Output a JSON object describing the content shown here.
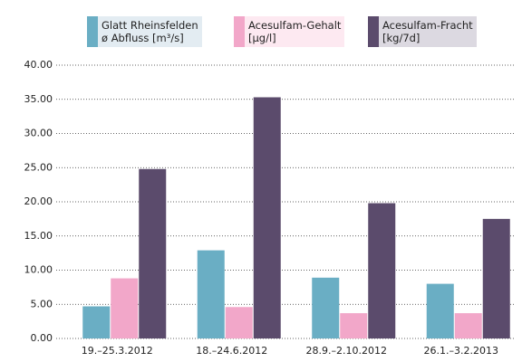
{
  "chart_data": {
    "type": "bar",
    "categories": [
      "19.–25.3.2012",
      "18.–24.6.2012",
      "28.9.–2.10.2012",
      "26.1.–3.2.2013"
    ],
    "series": [
      {
        "name": "Glatt Rheinsfelden\nø Abfluss [m³/s]",
        "color": "#6aaec4",
        "values": [
          4.7,
          12.9,
          8.9,
          8.0
        ]
      },
      {
        "name": "Acesulfam-Gehalt\n[µg/l]",
        "color": "#f2a7c9",
        "values": [
          8.8,
          4.6,
          3.7,
          3.7
        ]
      },
      {
        "name": "Acesulfam-Fracht\n[kg/7d]",
        "color": "#5b4b6c",
        "values": [
          24.8,
          35.3,
          19.8,
          17.5
        ]
      }
    ],
    "ylim": [
      0,
      40
    ],
    "yticks": [
      {
        "value": 0,
        "label": "0.00"
      },
      {
        "value": 5,
        "label": "5.00"
      },
      {
        "value": 10,
        "label": "10.00"
      },
      {
        "value": 15,
        "label": "15.00"
      },
      {
        "value": 20,
        "label": "20.00"
      },
      {
        "value": 25,
        "label": "25.00"
      },
      {
        "value": 30,
        "label": "30.00"
      },
      {
        "value": 35,
        "label": "35.00"
      },
      {
        "value": 40,
        "label": "40.00"
      }
    ],
    "grid": true
  }
}
